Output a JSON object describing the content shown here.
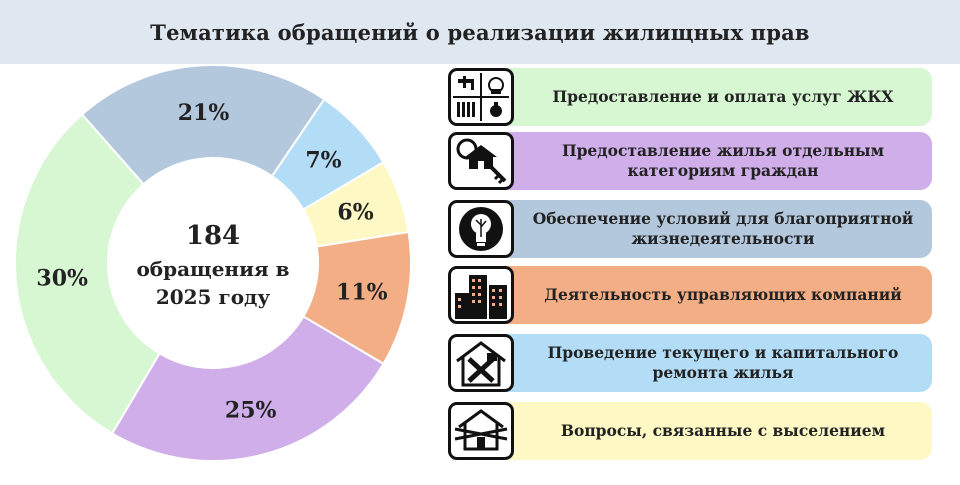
{
  "title": "Тематика обращений о реализации жилищных прав",
  "center": {
    "line1": "184",
    "line2": "обращения в",
    "line3": "2025 году"
  },
  "chart_data": {
    "type": "pie",
    "style": "donut",
    "title": "Тематика обращений о реализации жилищных прав",
    "total": 184,
    "slices": [
      {
        "value": 21,
        "label": "21%",
        "color": "#b3c7dd"
      },
      {
        "value": 7,
        "label": "7%",
        "color": "#b3ddf7"
      },
      {
        "value": 6,
        "label": "6%",
        "color": "#fdf8c4"
      },
      {
        "value": 11,
        "label": "11%",
        "color": "#f3ae86"
      },
      {
        "value": 25,
        "label": "25%",
        "color": "#cfaee9"
      },
      {
        "value": 30,
        "label": "30%",
        "color": "#d7f7d3"
      }
    ]
  },
  "categories": [
    {
      "label": "Предоставление и оплата услуг ЖКХ",
      "color": "#d7f7d3",
      "icon": "utilities-icon"
    },
    {
      "label": "Предоставление жилья отдельным категориям граждан",
      "color": "#cfaee9",
      "icon": "house-key-icon"
    },
    {
      "label": "Обеспечение условий для благоприятной жизнедеятельности",
      "color": "#b3c7dd",
      "icon": "lightbulb-icon"
    },
    {
      "label": "Деятельность управляющих компаний",
      "color": "#f3ae86",
      "icon": "buildings-icon"
    },
    {
      "label": "Проведение текущего и капитального ремонта жилья",
      "color": "#b3ddf7",
      "icon": "house-repair-icon"
    },
    {
      "label": "Вопросы, связанные с выселением",
      "color": "#fdf8c4",
      "icon": "eviction-icon"
    }
  ]
}
